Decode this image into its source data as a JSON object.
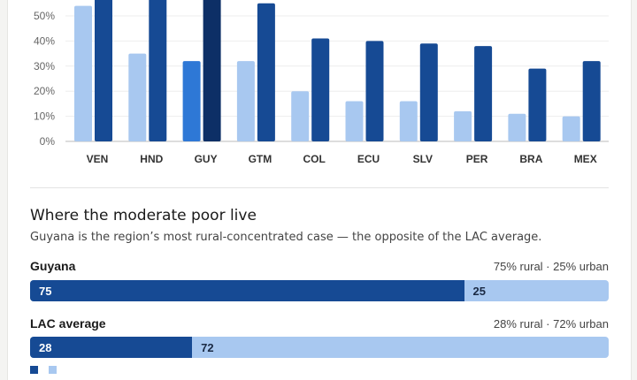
{
  "chart_data": {
    "type": "bar",
    "categories": [
      "VEN",
      "HND",
      "GUY",
      "GTM",
      "COL",
      "ECU",
      "SLV",
      "PER",
      "BRA",
      "MEX"
    ],
    "series": [
      {
        "values": [
          54,
          35,
          32,
          32,
          20,
          16,
          16,
          12,
          11,
          10
        ]
      },
      {
        "values": [
          null,
          null,
          null,
          55,
          41,
          40,
          39,
          38,
          29,
          32
        ]
      }
    ],
    "yticks": [
      "0%",
      "10%",
      "20%",
      "30%",
      "40%",
      "50%"
    ],
    "ylim": [
      0,
      57
    ],
    "highlight": "GUY",
    "grid": true,
    "colors": {
      "light": "#a8c8f0",
      "dark": "#164a94",
      "highlight_light": "#2e78d6",
      "highlight_dark": "#0d2f66"
    }
  },
  "section": {
    "title": "Where the moderate poor live",
    "subtitle": "Guyana is the region’s most rural-concentrated case — the opposite of the LAC average.",
    "rows": [
      {
        "label": "Guyana",
        "note": "75% rural · 25% urban",
        "rural": 75,
        "urban": 25,
        "rural_text": "75",
        "urban_text": "25"
      },
      {
        "label": "LAC average",
        "note": "28% rural · 72% urban",
        "rural": 28,
        "urban": 72,
        "rural_text": "28",
        "urban_text": "72"
      }
    ]
  }
}
